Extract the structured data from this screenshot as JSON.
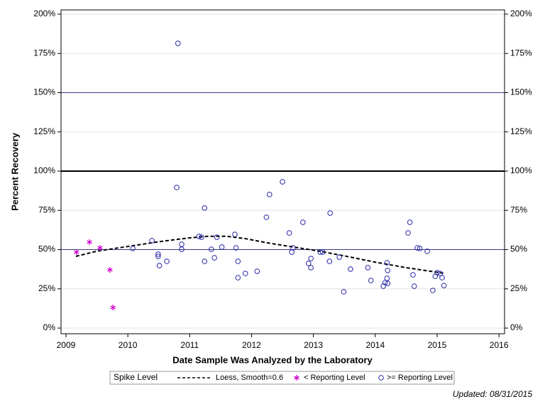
{
  "chart_data": {
    "type": "scatter",
    "xlabel": "Date Sample Was Analyzed by the Laboratory",
    "ylabel": "Percent Recovery",
    "xlim": [
      2008.92,
      2016.09
    ],
    "xticks": [
      2009,
      2010,
      2011,
      2012,
      2013,
      2014,
      2015,
      2016
    ],
    "ylim": [
      -3.6,
      202.7
    ],
    "yticks": [
      {
        "value": 0,
        "label": "0%"
      },
      {
        "value": 25,
        "label": "25%"
      },
      {
        "value": 50,
        "label": "50%"
      },
      {
        "value": 75,
        "label": "75%"
      },
      {
        "value": 100,
        "label": "100%"
      },
      {
        "value": 125,
        "label": "125%"
      },
      {
        "value": 150,
        "label": "150%"
      },
      {
        "value": 175,
        "label": "175%"
      },
      {
        "value": 200,
        "label": "200%"
      }
    ],
    "y2lim": [
      -3.6,
      202.7
    ],
    "y2ticks": [
      {
        "value": 0,
        "label": "0%"
      },
      {
        "value": 25,
        "label": "25%"
      },
      {
        "value": 50,
        "label": "50%"
      },
      {
        "value": 75,
        "label": "75%"
      },
      {
        "value": 100,
        "label": "100%"
      },
      {
        "value": 125,
        "label": "125%"
      },
      {
        "value": 150,
        "label": "150%"
      },
      {
        "value": 175,
        "label": "175%"
      },
      {
        "value": 200,
        "label": "200%"
      }
    ],
    "grid": true,
    "reference_lines": [
      {
        "value": 50,
        "width": 1,
        "color": "#3a3a80"
      },
      {
        "value": 100,
        "width": 2,
        "color": "#000000"
      },
      {
        "value": 150,
        "width": 1,
        "color": "#3a3a80"
      }
    ],
    "legend_title": "Spike Level",
    "legend": "bottom",
    "series": [
      {
        "name": "Loess, Smooth=0.6",
        "marker": "dashed-line",
        "color": "#000000",
        "x": [
          2009.16,
          2009.5,
          2010,
          2010.5,
          2011,
          2011.3,
          2011.6,
          2011.9,
          2012.3,
          2012.7,
          2013.1,
          2013.5,
          2014,
          2014.5,
          2015.1
        ],
        "values": [
          45.7,
          49,
          52,
          55,
          57.5,
          58.5,
          58.5,
          57,
          54,
          51.5,
          49,
          46,
          42,
          38.5,
          35
        ]
      },
      {
        "name": "< Reporting Level",
        "marker": "asterisk",
        "color": "#cc00cc",
        "x": [
          2009.17,
          2009.38,
          2009.55,
          2009.71,
          2009.76
        ],
        "values": [
          48.4,
          54.8,
          51.1,
          37.1,
          13.1
        ]
      },
      {
        "name": ">= Reporting Level",
        "marker": "circle",
        "color": "#2a2aa8",
        "x": [
          2010.08,
          2010.39,
          2010.49,
          2010.49,
          2010.51,
          2010.63,
          2010.81,
          2010.79,
          2010.87,
          2010.87,
          2011.15,
          2011.19,
          2011.24,
          2011.24,
          2011.35,
          2011.4,
          2011.44,
          2011.52,
          2011.73,
          2011.75,
          2011.78,
          2011.78,
          2011.9,
          2012.09,
          2012.24,
          2012.29,
          2012.5,
          2012.61,
          2012.65,
          2012.67,
          2012.83,
          2012.92,
          2012.96,
          2012.96,
          2013.11,
          2013.15,
          2013.26,
          2013.27,
          2013.42,
          2013.49,
          2013.6,
          2013.88,
          2013.93,
          2014.13,
          2014.16,
          2014.19,
          2014.19,
          2014.2,
          2014.2,
          2014.53,
          2014.56,
          2014.61,
          2014.63,
          2014.68,
          2014.72,
          2014.84,
          2014.93,
          2014.97,
          2015.0,
          2015.05,
          2015.08,
          2015.11
        ],
        "values": [
          50.7,
          55.7,
          47.1,
          45.7,
          39.8,
          42.5,
          181.4,
          89.6,
          53.4,
          50.2,
          58.4,
          57.9,
          76.5,
          42.5,
          50.2,
          44.8,
          57.9,
          51.6,
          59.7,
          51.1,
          42.5,
          32.1,
          34.8,
          36.2,
          70.6,
          85.1,
          93.2,
          60.6,
          48.4,
          51.1,
          67.4,
          41.2,
          44.3,
          38.5,
          48.4,
          48.4,
          42.5,
          73.3,
          45.2,
          23.1,
          37.6,
          38.5,
          30.3,
          26.7,
          29.0,
          31.7,
          41.6,
          28.5,
          36.7,
          60.6,
          67.4,
          33.9,
          26.7,
          51.1,
          50.7,
          48.9,
          24.0,
          33.0,
          35.3,
          34.8,
          32.1,
          27.1
        ]
      }
    ],
    "footnote": "Updated: 08/31/2015"
  }
}
